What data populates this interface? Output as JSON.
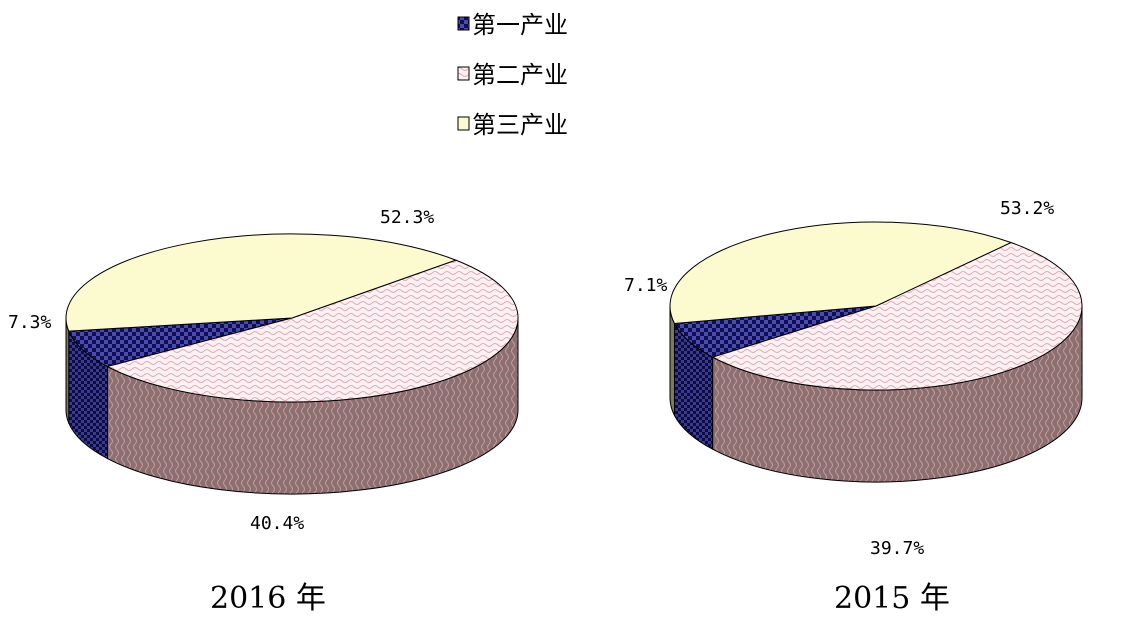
{
  "legend": [
    {
      "label": "第一产业",
      "color": "#3a3a8c",
      "pattern": "checker-blue"
    },
    {
      "label": "第二产业",
      "color": "#f4dde0",
      "pattern": "wave-pink"
    },
    {
      "label": "第三产业",
      "color": "#fbfbcf",
      "pattern": "solid-yellow"
    }
  ],
  "chart_data": [
    {
      "type": "pie",
      "title": "2016 年",
      "categories": [
        "第一产业",
        "第二产业",
        "第三产业"
      ],
      "values": [
        7.3,
        52.3,
        40.4
      ],
      "labels": [
        "7.3%",
        "52.3%",
        "40.4%"
      ],
      "style": "3d"
    },
    {
      "type": "pie",
      "title": "2015 年",
      "categories": [
        "第一产业",
        "第二产业",
        "第三产业"
      ],
      "values": [
        7.1,
        53.2,
        39.7
      ],
      "labels": [
        "7.1%",
        "53.2%",
        "39.7%"
      ],
      "style": "3d"
    }
  ],
  "colors": {
    "primary_top": "#4a4aa8",
    "secondary_top": "#fae6e8",
    "tertiary_top": "#fbfbcf",
    "side_dark": "#7b7b5f",
    "side_pink": "#a08080",
    "side_blue": "#2a2a7a",
    "outline": "#000000"
  }
}
